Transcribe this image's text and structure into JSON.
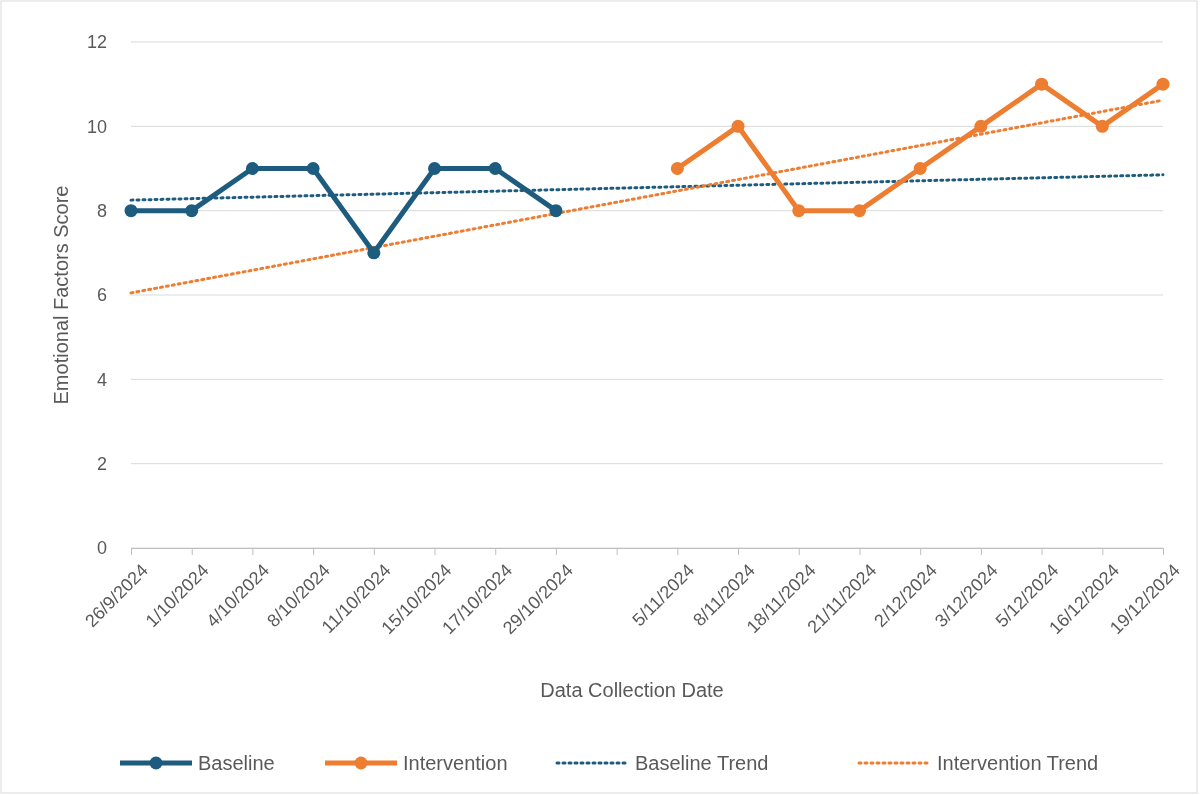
{
  "chart_data": {
    "type": "line",
    "xlabel": "Data Collection Date",
    "ylabel": "Emotional Factors Score",
    "categories": [
      "26/9/2024",
      "1/10/2024",
      "4/10/2024",
      "8/10/2024",
      "11/10/2024",
      "15/10/2024",
      "17/10/2024",
      "29/10/2024",
      null,
      "5/11/2024",
      "8/11/2024",
      "18/11/2024",
      "21/11/2024",
      "2/12/2024",
      "3/12/2024",
      "5/12/2024",
      "16/12/2024",
      "19/12/2024"
    ],
    "series": [
      {
        "name": "Baseline",
        "color": "#1d5c7e",
        "marker": "circle",
        "line_style": "solid",
        "values": [
          8,
          8,
          9,
          9,
          7,
          9,
          9,
          8,
          null,
          null,
          null,
          null,
          null,
          null,
          null,
          null,
          null,
          null
        ]
      },
      {
        "name": "Intervention",
        "color": "#ed7d31",
        "marker": "circle",
        "line_style": "solid",
        "values": [
          null,
          null,
          null,
          null,
          null,
          null,
          null,
          null,
          null,
          9,
          10,
          8,
          8,
          9,
          10,
          11,
          10,
          11
        ]
      },
      {
        "name": "Baseline Trend",
        "color": "#1d5c7e",
        "marker": "none",
        "line_style": "dotted",
        "values": [
          8.25,
          null,
          null,
          null,
          null,
          null,
          null,
          null,
          null,
          null,
          null,
          null,
          null,
          null,
          null,
          null,
          null,
          8.85
        ]
      },
      {
        "name": "Intervention Trend",
        "color": "#ed7d31",
        "marker": "none",
        "line_style": "dotted",
        "values": [
          6.05,
          null,
          null,
          null,
          null,
          null,
          null,
          null,
          null,
          null,
          null,
          null,
          null,
          null,
          null,
          null,
          null,
          10.62
        ]
      }
    ],
    "ylim": [
      0,
      12
    ],
    "yticks": [
      0,
      2,
      4,
      6,
      8,
      10,
      12
    ],
    "grid": "y",
    "legend": "bottom"
  }
}
